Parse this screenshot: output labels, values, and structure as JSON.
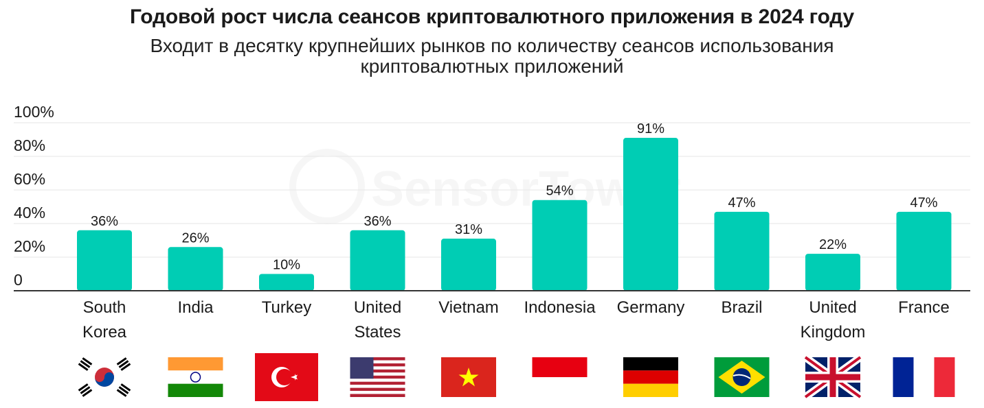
{
  "title": "Годовой рост числа сеансов криптовалютного приложения в 2024 году",
  "subtitle_lines": [
    "Входит в десятку крупнейших рынков по количеству сеансов использования",
    "криптовалютных приложений"
  ],
  "watermark": "SensorTower",
  "colors": {
    "bar": "#00cdb4",
    "grid": "#e6e6e6",
    "axis": "#333333",
    "text": "#1a1a1a"
  },
  "chart_data": {
    "type": "bar",
    "categories": [
      "South Korea",
      "India",
      "Turkey",
      "United States",
      "Vietnam",
      "Indonesia",
      "Germany",
      "Brazil",
      "United Kingdom",
      "France"
    ],
    "category_label_lines": [
      [
        "South",
        "Korea"
      ],
      [
        "India"
      ],
      [
        "Turkey"
      ],
      [
        "United",
        "States"
      ],
      [
        "Vietnam"
      ],
      [
        "Indonesia"
      ],
      [
        "Germany"
      ],
      [
        "Brazil"
      ],
      [
        "United",
        "Kingdom"
      ],
      [
        "France"
      ]
    ],
    "values": [
      36,
      26,
      10,
      36,
      31,
      54,
      91,
      47,
      22,
      47
    ],
    "data_labels": [
      "36%",
      "26%",
      "10%",
      "36%",
      "31%",
      "54%",
      "91%",
      "47%",
      "22%",
      "47%"
    ],
    "ylim": [
      0,
      100
    ],
    "yticks": [
      0,
      20,
      40,
      60,
      80,
      100
    ],
    "ytick_labels": [
      "0",
      "20%",
      "40%",
      "60%",
      "80%",
      "100%"
    ],
    "grid": true,
    "flags": [
      "south-korea",
      "india",
      "turkey",
      "united-states",
      "vietnam",
      "indonesia",
      "germany",
      "brazil",
      "united-kingdom",
      "france"
    ]
  }
}
